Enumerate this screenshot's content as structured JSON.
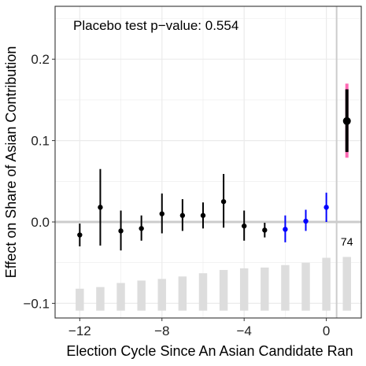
{
  "chart_data": {
    "type": "scatter",
    "subtype": "event-study point estimates with confidence intervals",
    "xlabel": "Election Cycle Since An Asian Candidate Ran",
    "ylabel": "Effect on Share of Asian Contribution",
    "annotation": "Placebo test p−value: 0.554",
    "bar_label": "74",
    "xlim": [
      -13.2,
      1.7
    ],
    "ylim": [
      -0.118,
      0.265
    ],
    "x_ticks": [
      -12,
      -8,
      -4,
      0
    ],
    "x_tick_labels": [
      "−12",
      "−8",
      "−4",
      "0"
    ],
    "y_ticks": [
      -0.1,
      0.0,
      0.1,
      0.2
    ],
    "y_tick_labels": [
      "−0.1",
      "0.0",
      "0.1",
      "0.2"
    ],
    "grid": true,
    "reference_line_y": 0.0,
    "reference_line_x": 0.5,
    "colors": {
      "pre_period": "#000000",
      "placebo_period": "#0000ff",
      "post_period": "#000000",
      "post_outer_ci": "#ff69b4",
      "histogram": "#dddddd",
      "panel_background": "#ffffff",
      "grid": "#ebebeb",
      "reference_line": "#cccccc"
    },
    "points": [
      {
        "x": -12,
        "y": -0.016,
        "lo": -0.03,
        "hi": -0.002,
        "group": "pre"
      },
      {
        "x": -11,
        "y": 0.018,
        "lo": -0.029,
        "hi": 0.065,
        "group": "pre"
      },
      {
        "x": -10,
        "y": -0.011,
        "lo": -0.035,
        "hi": 0.014,
        "group": "pre"
      },
      {
        "x": -9,
        "y": -0.008,
        "lo": -0.023,
        "hi": 0.008,
        "group": "pre"
      },
      {
        "x": -8,
        "y": 0.01,
        "lo": -0.014,
        "hi": 0.035,
        "group": "pre"
      },
      {
        "x": -7,
        "y": 0.008,
        "lo": -0.011,
        "hi": 0.028,
        "group": "pre"
      },
      {
        "x": -6,
        "y": 0.008,
        "lo": -0.008,
        "hi": 0.024,
        "group": "pre"
      },
      {
        "x": -5,
        "y": 0.025,
        "lo": -0.007,
        "hi": 0.059,
        "group": "pre"
      },
      {
        "x": -4,
        "y": -0.005,
        "lo": -0.023,
        "hi": 0.014,
        "group": "pre"
      },
      {
        "x": -3,
        "y": -0.01,
        "lo": -0.019,
        "hi": -0.001,
        "group": "pre"
      },
      {
        "x": -2,
        "y": -0.009,
        "lo": -0.025,
        "hi": 0.008,
        "group": "placebo"
      },
      {
        "x": -1,
        "y": 0.001,
        "lo": -0.011,
        "hi": 0.015,
        "group": "placebo"
      },
      {
        "x": 0,
        "y": 0.018,
        "lo": 0.0,
        "hi": 0.036,
        "group": "placebo"
      },
      {
        "x": 1,
        "y": 0.124,
        "lo": 0.086,
        "hi": 0.163,
        "outer_lo": 0.079,
        "outer_hi": 0.17,
        "group": "post"
      }
    ],
    "histogram": {
      "note": "relative bar heights shown beneath estimates",
      "x": [
        -12,
        -11,
        -10,
        -9,
        -8,
        -7,
        -6,
        -5,
        -4,
        -3,
        -2,
        -1,
        0,
        1
      ],
      "top_y": [
        -0.082,
        -0.08,
        -0.075,
        -0.072,
        -0.07,
        -0.067,
        -0.063,
        -0.059,
        -0.057,
        -0.056,
        -0.053,
        -0.05,
        -0.044,
        -0.043
      ],
      "base_y": -0.1
    }
  }
}
